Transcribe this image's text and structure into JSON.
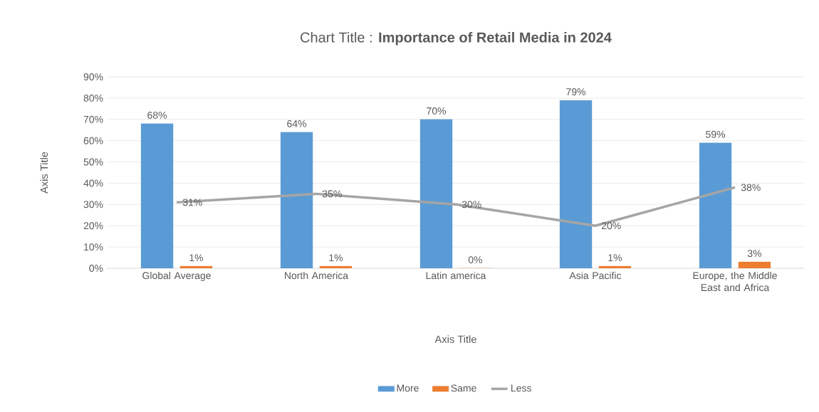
{
  "chart_data": {
    "type": "bar",
    "title": "Chart Title : **Importance of Retail Media in 2024**",
    "xlabel": "Axis Title",
    "ylabel": "Axis Title",
    "categories": [
      "Global Average",
      "North America",
      "Latin america",
      "Asia Pacific",
      "Europe, the Middle East and Africa"
    ],
    "series": [
      {
        "name": "More",
        "color": "#5b9bd5",
        "values": [
          68,
          64,
          70,
          79,
          59
        ],
        "value_labels": [
          "68%",
          "64%",
          "70%",
          "79%",
          "59%"
        ]
      },
      {
        "name": "Same",
        "color": "#ed7d31",
        "values": [
          1,
          1,
          0,
          1,
          3
        ],
        "value_labels": [
          "1%",
          "1%",
          "0%",
          "1%",
          "3%"
        ]
      },
      {
        "name": "Less",
        "type": "line",
        "color": "#a5a5a5",
        "values": [
          31,
          35,
          30,
          20,
          38
        ],
        "value_labels": [
          "31%",
          "35%",
          "30%",
          "20%",
          "38%"
        ]
      }
    ],
    "ylim": [
      0,
      90
    ],
    "yticks": [
      {
        "value": 0,
        "label": "0%"
      },
      {
        "value": 10,
        "label": "10%"
      },
      {
        "value": 20,
        "label": "20%"
      },
      {
        "value": 30,
        "label": "30%"
      },
      {
        "value": 40,
        "label": "40%"
      },
      {
        "value": 50,
        "label": "50%"
      },
      {
        "value": 60,
        "label": "60%"
      },
      {
        "value": 70,
        "label": "70%"
      },
      {
        "value": 80,
        "label": "80%"
      },
      {
        "value": 90,
        "label": "90%"
      }
    ],
    "grid": "y",
    "legend": "bottom",
    "marker": "none",
    "line_style": "solid"
  }
}
